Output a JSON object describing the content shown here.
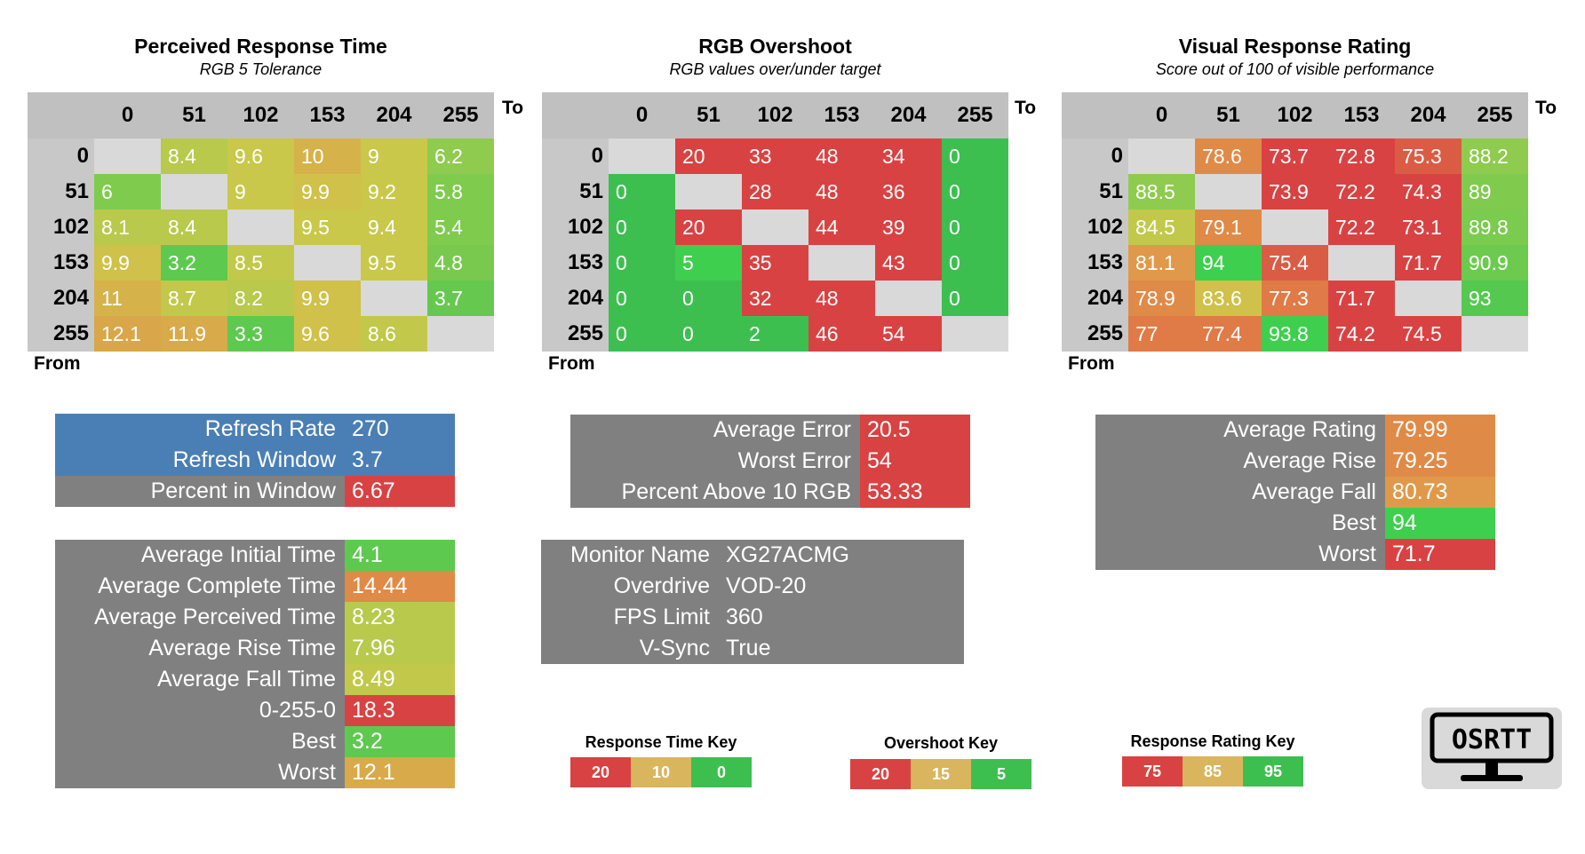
{
  "colors": {
    "red": "#d94242",
    "orange": "#e09447",
    "yellow": "#d4c84a",
    "green": "#3dbf50",
    "grey": "#808080",
    "blue": "#4a7fb5"
  },
  "headers": [
    "0",
    "51",
    "102",
    "153",
    "204",
    "255"
  ],
  "axis": {
    "to": "To",
    "from": "From"
  },
  "chart_data": [
    {
      "type": "heatmap",
      "title": "Perceived Response Time",
      "subtitle": "RGB 5 Tolerance",
      "xlabel": "To",
      "ylabel": "From",
      "rows": [
        "0",
        "51",
        "102",
        "153",
        "204",
        "255"
      ],
      "cols": [
        "0",
        "51",
        "102",
        "153",
        "204",
        "255"
      ],
      "values": [
        [
          "",
          "8.4",
          "9.6",
          "10",
          "9",
          "6.2"
        ],
        [
          "6",
          "",
          "9",
          "9.9",
          "9.2",
          "5.8"
        ],
        [
          "8.1",
          "8.4",
          "",
          "9.5",
          "9.4",
          "5.4"
        ],
        [
          "9.9",
          "3.2",
          "8.5",
          "",
          "9.5",
          "4.8"
        ],
        [
          "11",
          "8.7",
          "8.2",
          "9.9",
          "",
          "3.7"
        ],
        [
          "12.1",
          "11.9",
          "3.3",
          "9.6",
          "8.6",
          ""
        ]
      ],
      "colors": [
        [
          "",
          "#b8c94c",
          "#c9c84a",
          "#d6b24a",
          "#c9c84a",
          "#8fcb4e"
        ],
        [
          "#7fcb4e",
          "",
          "#c9c84a",
          "#cfc149",
          "#c9c84a",
          "#7fcb4e"
        ],
        [
          "#b8c94c",
          "#b8c94c",
          "",
          "#c9c84a",
          "#c9c84a",
          "#7fcb4e"
        ],
        [
          "#cfc149",
          "#5ec94f",
          "#c2c84a",
          "",
          "#c9c84a",
          "#79c94e"
        ],
        [
          "#d6b24a",
          "#c2c84a",
          "#b8c94c",
          "#cfc149",
          "",
          "#66c84f"
        ],
        [
          "#d9a64a",
          "#d9aa4a",
          "#5ec94f",
          "#cfc149",
          "#c2c84a",
          ""
        ]
      ]
    },
    {
      "type": "heatmap",
      "title": "RGB Overshoot",
      "subtitle": "RGB values over/under target",
      "xlabel": "To",
      "ylabel": "From",
      "rows": [
        "0",
        "51",
        "102",
        "153",
        "204",
        "255"
      ],
      "cols": [
        "0",
        "51",
        "102",
        "153",
        "204",
        "255"
      ],
      "values": [
        [
          "",
          "20",
          "33",
          "48",
          "34",
          "0"
        ],
        [
          "0",
          "",
          "28",
          "48",
          "36",
          "0"
        ],
        [
          "0",
          "20",
          "",
          "44",
          "39",
          "0"
        ],
        [
          "0",
          "5",
          "35",
          "",
          "43",
          "0"
        ],
        [
          "0",
          "0",
          "32",
          "48",
          "",
          "0"
        ],
        [
          "0",
          "0",
          "2",
          "46",
          "54",
          ""
        ]
      ],
      "colors": [
        [
          "",
          "#d94242",
          "#d94242",
          "#d94242",
          "#d94242",
          "#3dbf50"
        ],
        [
          "#3dbf50",
          "",
          "#d94242",
          "#d94242",
          "#d94242",
          "#3dbf50"
        ],
        [
          "#3dbf50",
          "#d94242",
          "",
          "#d94242",
          "#d94242",
          "#3dbf50"
        ],
        [
          "#3dbf50",
          "#3ecf4e",
          "#d94242",
          "",
          "#d94242",
          "#3dbf50"
        ],
        [
          "#3dbf50",
          "#3dbf50",
          "#d94242",
          "#d94242",
          "",
          "#3dbf50"
        ],
        [
          "#3dbf50",
          "#3dbf50",
          "#3dbf50",
          "#d94242",
          "#d94242",
          ""
        ]
      ]
    },
    {
      "type": "heatmap",
      "title": "Visual Response Rating",
      "subtitle": "Score out of 100 of visible performance",
      "xlabel": "To",
      "ylabel": "From",
      "rows": [
        "0",
        "51",
        "102",
        "153",
        "204",
        "255"
      ],
      "cols": [
        "0",
        "51",
        "102",
        "153",
        "204",
        "255"
      ],
      "values": [
        [
          "",
          "78.6",
          "73.7",
          "72.8",
          "75.3",
          "88.2"
        ],
        [
          "88.5",
          "",
          "73.9",
          "72.2",
          "74.3",
          "89"
        ],
        [
          "84.5",
          "79.1",
          "",
          "72.2",
          "73.1",
          "89.8"
        ],
        [
          "81.1",
          "94",
          "75.4",
          "",
          "71.7",
          "90.9"
        ],
        [
          "78.9",
          "83.6",
          "77.3",
          "71.7",
          "",
          "93"
        ],
        [
          "77",
          "77.4",
          "93.8",
          "74.2",
          "74.5",
          ""
        ]
      ],
      "colors": [
        [
          "",
          "#e08a47",
          "#d94242",
          "#d94242",
          "#db5c44",
          "#8fcb4e"
        ],
        [
          "#8fcb4e",
          "",
          "#d94242",
          "#d94242",
          "#d94242",
          "#80cb4e"
        ],
        [
          "#c2c84a",
          "#e08a47",
          "",
          "#d94242",
          "#d94242",
          "#7acb4e"
        ],
        [
          "#e0994a",
          "#3ecf4e",
          "#db5c44",
          "",
          "#d94242",
          "#6ccb4e"
        ],
        [
          "#e08a47",
          "#cfc149",
          "#e07a46",
          "#d94242",
          "",
          "#55c94f"
        ],
        [
          "#e07a46",
          "#e07a46",
          "#3ecf4e",
          "#d94242",
          "#d94242",
          ""
        ]
      ]
    }
  ],
  "refresh_panel": [
    {
      "label": "Refresh Rate",
      "value": "270",
      "label_color": "#4a7fb5",
      "value_color": "#4a7fb5"
    },
    {
      "label": "Refresh Window",
      "value": "3.7",
      "label_color": "#4a7fb5",
      "value_color": "#4a7fb5"
    },
    {
      "label": "Percent in Window",
      "value": "6.67",
      "label_color": "#808080",
      "value_color": "#d94242"
    }
  ],
  "time_panel": [
    {
      "label": "Average Initial Time",
      "value": "4.1",
      "value_color": "#5ec94f"
    },
    {
      "label": "Average Complete Time",
      "value": "14.44",
      "value_color": "#e08a47"
    },
    {
      "label": "Average Perceived Time",
      "value": "8.23",
      "value_color": "#b8c94c"
    },
    {
      "label": "Average Rise Time",
      "value": "7.96",
      "value_color": "#b8c94c"
    },
    {
      "label": "Average Fall Time",
      "value": "8.49",
      "value_color": "#c2c84a"
    },
    {
      "label": "0-255-0",
      "value": "18.3",
      "value_color": "#d94242"
    },
    {
      "label": "Best",
      "value": "3.2",
      "value_color": "#5ec94f"
    },
    {
      "label": "Worst",
      "value": "12.1",
      "value_color": "#d9aa4a"
    }
  ],
  "error_panel": [
    {
      "label": "Average Error",
      "value": "20.5",
      "value_color": "#d94242"
    },
    {
      "label": "Worst Error",
      "value": "54",
      "value_color": "#d94242"
    },
    {
      "label": "Percent Above 10 RGB",
      "value": "53.33",
      "value_color": "#d94242"
    }
  ],
  "monitor_panel": [
    {
      "label": "Monitor Name",
      "value": "XG27ACMG"
    },
    {
      "label": "Overdrive",
      "value": "VOD-20"
    },
    {
      "label": "FPS Limit",
      "value": "360"
    },
    {
      "label": "V-Sync",
      "value": "True"
    }
  ],
  "rating_panel": [
    {
      "label": "Average Rating",
      "value": "79.99",
      "value_color": "#e08a47"
    },
    {
      "label": "Average Rise",
      "value": "79.25",
      "value_color": "#e08a47"
    },
    {
      "label": "Average Fall",
      "value": "80.73",
      "value_color": "#e0994a"
    },
    {
      "label": "Best",
      "value": "94",
      "value_color": "#3ecf4e"
    },
    {
      "label": "Worst",
      "value": "71.7",
      "value_color": "#d94242"
    }
  ],
  "keys": [
    {
      "title": "Response Time Key",
      "items": [
        {
          "label": "20",
          "color": "#d94242"
        },
        {
          "label": "10",
          "color": "#d9b55e"
        },
        {
          "label": "0",
          "color": "#3dbf50"
        }
      ]
    },
    {
      "title": "Overshoot Key",
      "items": [
        {
          "label": "20",
          "color": "#d94242"
        },
        {
          "label": "15",
          "color": "#d9b55e"
        },
        {
          "label": "5",
          "color": "#3dbf50"
        }
      ]
    },
    {
      "title": "Response Rating Key",
      "items": [
        {
          "label": "75",
          "color": "#d94242"
        },
        {
          "label": "85",
          "color": "#d9b55e"
        },
        {
          "label": "95",
          "color": "#3dbf50"
        }
      ]
    }
  ],
  "logo": {
    "text": "OSRTT"
  }
}
